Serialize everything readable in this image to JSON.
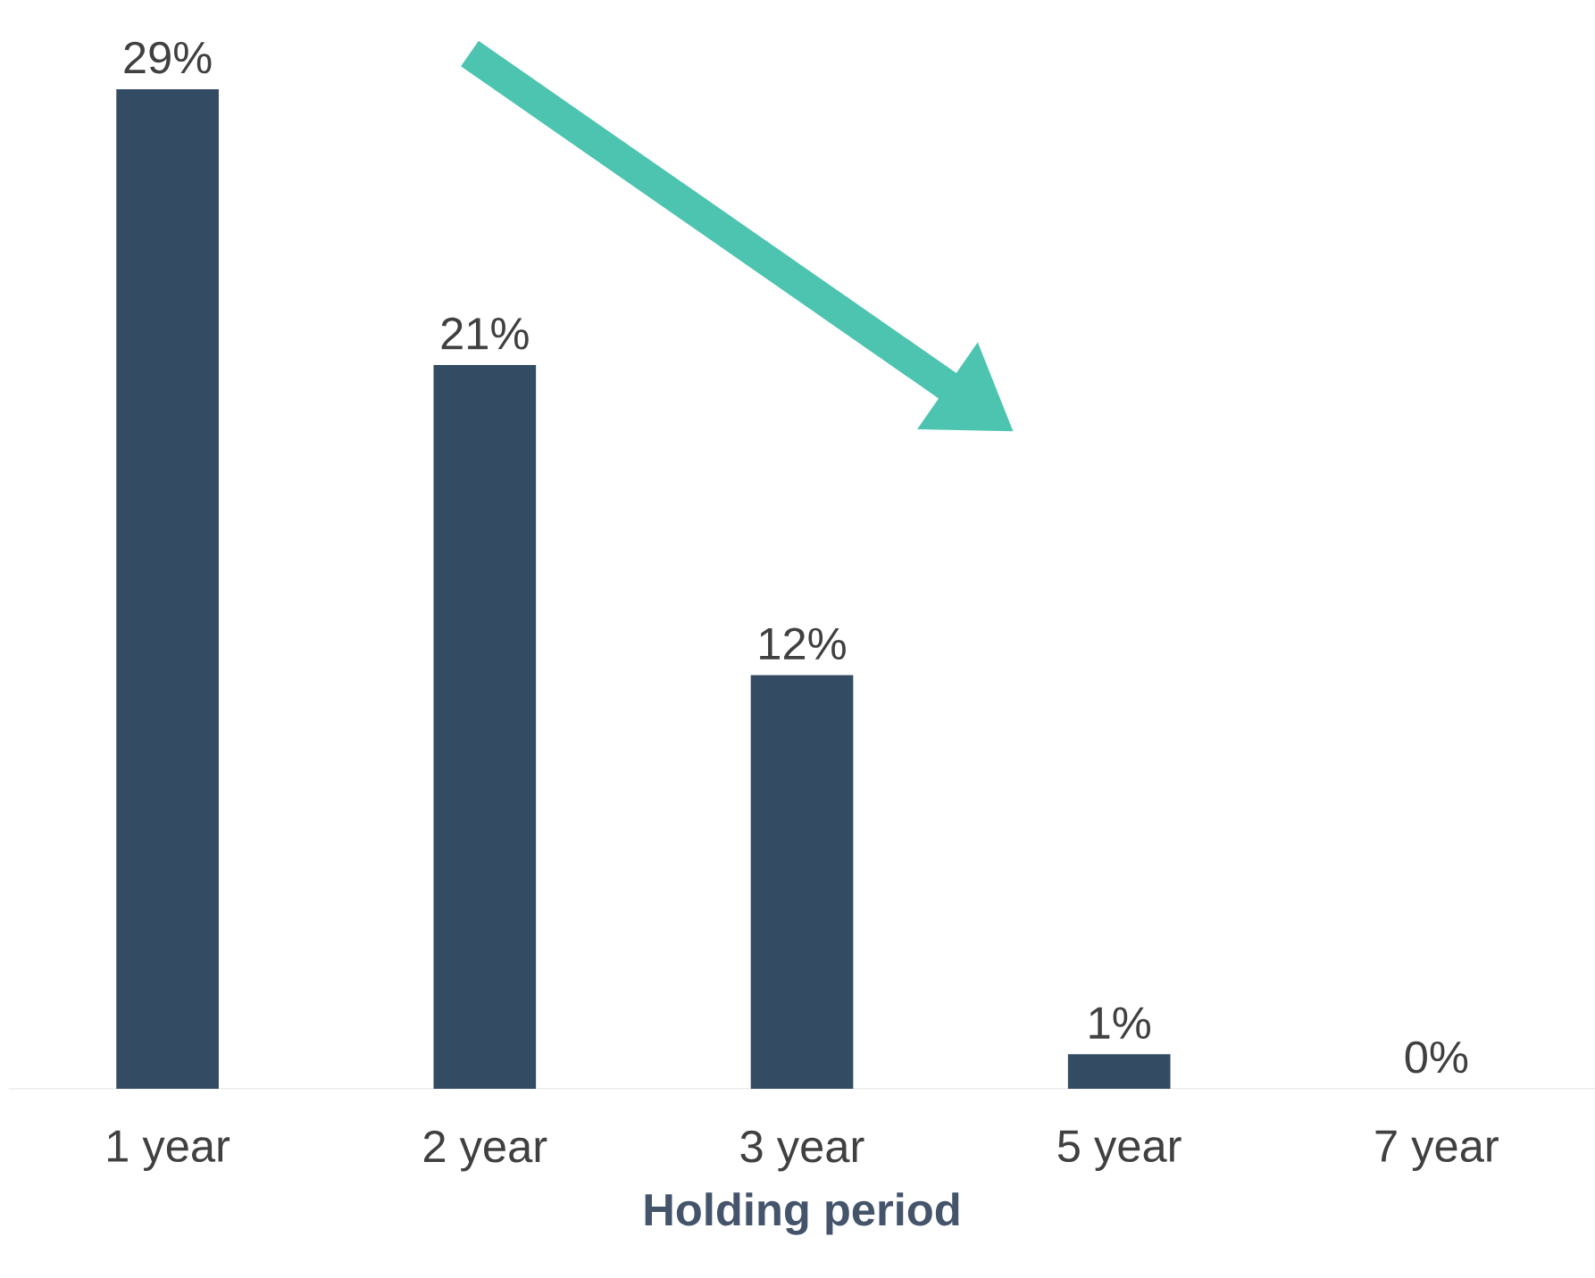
{
  "chart_data": {
    "type": "bar",
    "categories": [
      "1 year",
      "2 year",
      "3 year",
      "5 year",
      "7 year"
    ],
    "values": [
      29,
      21,
      12,
      1,
      0
    ],
    "value_labels": [
      "29%",
      "21%",
      "12%",
      "1%",
      "0%"
    ],
    "color": "#344b64",
    "xlabel": "Holding period"
  }
}
